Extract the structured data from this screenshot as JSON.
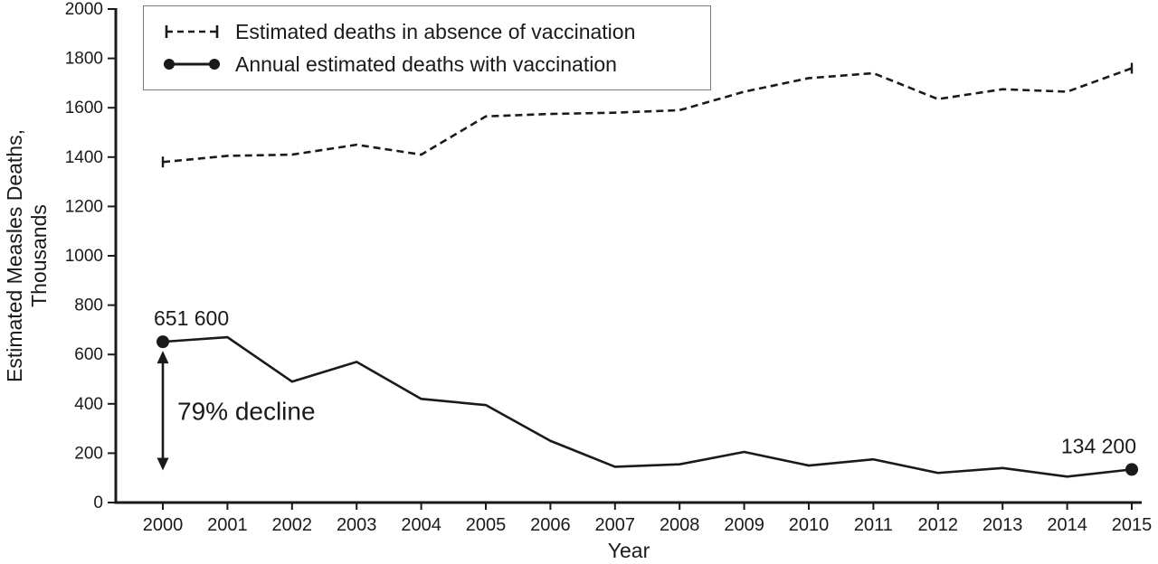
{
  "chart_data": {
    "type": "line",
    "title": "",
    "xlabel": "Year",
    "ylabel": "Estimated Measles Deaths, Thousands",
    "ylabel_lines": [
      "Estimated Measles Deaths,",
      "Thousands"
    ],
    "x": [
      2000,
      2001,
      2002,
      2003,
      2004,
      2005,
      2006,
      2007,
      2008,
      2009,
      2010,
      2011,
      2012,
      2013,
      2014,
      2015
    ],
    "ylim": [
      0,
      2000
    ],
    "ytick_step": 200,
    "grid": false,
    "legend_position": "top-left",
    "color": "#1a1a1a",
    "series": [
      {
        "id": "absence",
        "name": "Estimated deaths in absence of vaccination",
        "style": "dashed",
        "values": [
          1380,
          1405,
          1410,
          1450,
          1410,
          1565,
          1575,
          1580,
          1590,
          1665,
          1720,
          1740,
          1635,
          1675,
          1665,
          1760
        ]
      },
      {
        "id": "vaccination",
        "name": "Annual estimated deaths with vaccination",
        "style": "solid-dots",
        "values": [
          651.6,
          670,
          490,
          570,
          420,
          395,
          250,
          145,
          155,
          205,
          150,
          175,
          120,
          140,
          105,
          134.2
        ]
      }
    ],
    "annotations": {
      "start_label": "651 600",
      "end_label": "134 200",
      "decline_label": "79% decline",
      "arrow_from": 615,
      "arrow_to": 130
    }
  }
}
